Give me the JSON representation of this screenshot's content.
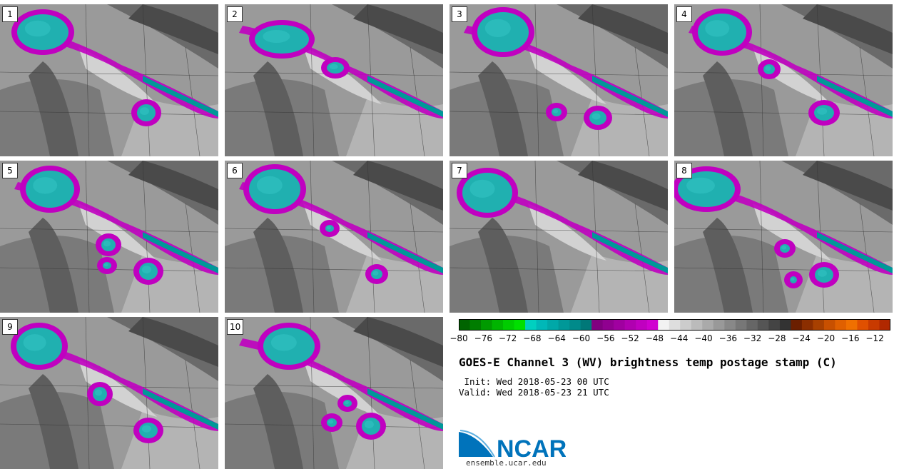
{
  "panels": [
    {
      "label": "1",
      "systems": [
        [
          60,
          45,
          36,
          25
        ],
        [
          205,
          158,
          13,
          12
        ]
      ]
    },
    {
      "label": "2",
      "systems": [
        [
          395,
          55,
          38,
          20
        ],
        [
          470,
          95,
          12,
          8
        ]
      ]
    },
    {
      "label": "3",
      "systems": [
        [
          705,
          45,
          36,
          28
        ],
        [
          838,
          165,
          12,
          10
        ],
        [
          780,
          157,
          7,
          6
        ]
      ]
    },
    {
      "label": "4",
      "systems": [
        [
          1012,
          45,
          34,
          26
        ],
        [
          1155,
          158,
          14,
          11
        ],
        [
          1078,
          97,
          8,
          7
        ]
      ]
    },
    {
      "label": "5",
      "systems": [
        [
          70,
          265,
          34,
          26
        ],
        [
          208,
          380,
          13,
          12
        ],
        [
          152,
          343,
          10,
          9
        ],
        [
          150,
          372,
          6,
          5
        ]
      ]
    },
    {
      "label": "6",
      "systems": [
        [
          385,
          265,
          36,
          28
        ],
        [
          528,
          384,
          8,
          7
        ],
        [
          462,
          320,
          6,
          5
        ]
      ]
    },
    {
      "label": "7",
      "systems": [
        [
          683,
          270,
          35,
          28
        ]
      ]
    },
    {
      "label": "8",
      "systems": [
        [
          990,
          265,
          40,
          25
        ],
        [
          1155,
          385,
          13,
          11
        ],
        [
          1100,
          348,
          7,
          6
        ],
        [
          1112,
          392,
          5,
          5
        ]
      ]
    },
    {
      "label": "9",
      "systems": [
        [
          55,
          485,
          32,
          26
        ],
        [
          208,
          603,
          13,
          11
        ],
        [
          140,
          552,
          10,
          10
        ]
      ]
    },
    {
      "label": "10",
      "systems": [
        [
          405,
          485,
          36,
          26
        ],
        [
          520,
          597,
          13,
          12
        ],
        [
          465,
          592,
          7,
          6
        ],
        [
          487,
          565,
          6,
          5
        ]
      ]
    }
  ],
  "colorbar": {
    "ticks": [
      "−80",
      "−76",
      "−72",
      "−68",
      "−64",
      "−60",
      "−56",
      "−52",
      "−48",
      "−44",
      "−40",
      "−36",
      "−32",
      "−28",
      "−24",
      "−20",
      "−16",
      "−12"
    ],
    "colors": [
      "#006400",
      "#007d00",
      "#009a00",
      "#00b400",
      "#00cc00",
      "#00e000",
      "#00d0c0",
      "#00b8b8",
      "#00a8a8",
      "#009898",
      "#008a8a",
      "#007878",
      "#800080",
      "#900090",
      "#a000a0",
      "#b000b0",
      "#c000c0",
      "#d000d0",
      "#f2f2f2",
      "#dedede",
      "#cccccc",
      "#bbbbbb",
      "#aaaaaa",
      "#999999",
      "#888888",
      "#777777",
      "#666666",
      "#555555",
      "#444444",
      "#333333",
      "#6b1f00",
      "#8b2e00",
      "#a84000",
      "#c85000",
      "#e06000",
      "#f07000",
      "#e05000",
      "#c83a00",
      "#b02800"
    ]
  },
  "title": "GOES-E Channel 3 (WV) brightness temp postage stamp (C)",
  "init_line": " Init: Wed 2018-05-23 00 UTC",
  "valid_line": "Valid: Wed 2018-05-23 21 UTC",
  "logo": {
    "name": "NCAR",
    "url": "ensemble.ucar.edu",
    "color": "#0073bb"
  }
}
